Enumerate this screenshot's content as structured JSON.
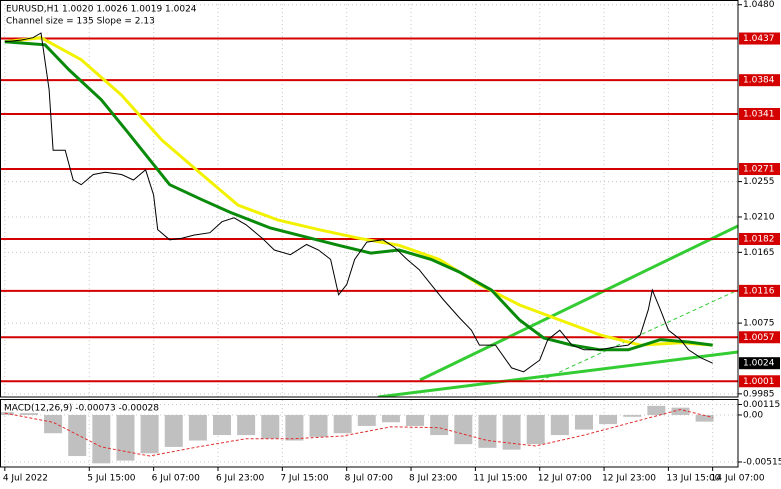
{
  "chart_data": [
    {
      "type": "line",
      "title": "EURUSD,H1  1.0020 1.0026 1.0019 1.0024",
      "subtitle": "Channel size = 135 Slope = 2.13",
      "xlim": [
        -1.2,
        182.3
      ],
      "ylim": [
        0.9981,
        1.0486
      ],
      "yticks": [
        {
          "value": 1.048,
          "label": "1.0480"
        },
        1.0255,
        {
          "value": 1.021,
          "label": "1.0210"
        },
        1.0165,
        1.0075,
        0.9985
      ],
      "grid": true,
      "levels": [
        {
          "value": 1.0437,
          "label": "1.0437"
        },
        {
          "value": 1.0384,
          "label": "1.0384"
        },
        {
          "value": 1.0341,
          "label": "1.0341"
        },
        {
          "value": 1.0271,
          "label": "1.0271"
        },
        {
          "value": 1.0182,
          "label": "1.0182"
        },
        {
          "value": 1.0116,
          "label": "1.0116"
        },
        {
          "value": 1.0057,
          "label": "1.0057"
        },
        {
          "value": 1.0001,
          "label": "1.0001"
        }
      ],
      "level_color": "#d40000",
      "current_price": {
        "value": 1.0024,
        "label": "1.0024"
      },
      "series": [
        {
          "color": "#000000",
          "width": 1,
          "x": [
            0,
            4,
            7,
            9,
            11,
            12,
            15,
            17,
            19,
            22,
            25,
            29,
            32,
            35,
            37,
            38,
            41,
            44,
            47,
            51,
            54,
            57,
            60,
            64,
            67,
            71,
            75,
            78,
            81,
            83,
            85,
            87,
            90,
            94,
            97,
            100,
            103,
            106,
            109,
            113,
            116,
            118,
            122,
            126,
            129,
            133,
            135,
            138,
            141,
            144,
            148,
            152,
            155,
            158,
            160,
            161,
            163,
            165,
            168,
            170,
            173,
            176
          ],
          "values": [
            1.0433,
            1.0435,
            1.0438,
            1.0444,
            1.0372,
            1.0295,
            1.0295,
            1.0257,
            1.0251,
            1.0264,
            1.0267,
            1.0264,
            1.0257,
            1.027,
            1.0238,
            1.0194,
            1.0181,
            1.0183,
            1.0187,
            1.019,
            1.0204,
            1.0209,
            1.02,
            1.0183,
            1.0168,
            1.0162,
            1.0175,
            1.0168,
            1.0156,
            1.0111,
            1.0124,
            1.0156,
            1.0178,
            1.0181,
            1.0171,
            1.0156,
            1.0143,
            1.0124,
            1.0105,
            1.0082,
            1.0066,
            1.0047,
            1.0047,
            1.0018,
            1.0013,
            1.0028,
            1.0054,
            1.0066,
            1.0047,
            1.0041,
            1.0041,
            1.0045,
            1.0047,
            1.006,
            1.0092,
            1.0117,
            1.0092,
            1.0066,
            1.0054,
            1.0041,
            1.0031,
            1.0024
          ]
        },
        {
          "color": "#f2f200",
          "width": 3,
          "x": [
            0,
            9,
            19,
            29,
            39,
            49,
            58,
            68,
            78,
            88,
            98,
            108,
            118,
            128,
            138,
            148,
            158,
            168,
            176
          ],
          "values": [
            1.0433,
            1.0438,
            1.041,
            1.0365,
            1.0308,
            1.0264,
            1.0225,
            1.0206,
            1.0194,
            1.0183,
            1.0174,
            1.0156,
            1.0124,
            1.0098,
            1.0079,
            1.006,
            1.0047,
            1.005,
            1.0047
          ]
        },
        {
          "color": "#0a8a0a",
          "width": 3,
          "x": [
            0,
            10,
            16,
            24,
            31,
            36,
            41,
            49,
            56,
            66,
            76,
            83,
            91,
            98,
            106,
            113,
            121,
            128,
            134,
            141,
            148,
            155,
            163,
            170,
            176
          ],
          "values": [
            1.0433,
            1.0429,
            1.0397,
            1.0359,
            1.0315,
            1.0283,
            1.0251,
            1.0232,
            1.0216,
            1.0196,
            1.0183,
            1.0174,
            1.0164,
            1.0168,
            1.0156,
            1.014,
            1.0117,
            1.0079,
            1.0056,
            1.0047,
            1.0041,
            1.0041,
            1.0054,
            1.0051,
            1.0047
          ]
        }
      ]
    },
    {
      "type": "macd",
      "title": "MACD(12,26,9) -0.00073 -0.00028",
      "ylim": [
        -0.0057,
        0.00164
      ],
      "yticks": [
        0.00115,
        {
          "value": 0,
          "label": "0.00"
        },
        -0.00515
      ],
      "xticks": [
        {
          "value": 0,
          "label": "4 Jul 2022"
        },
        {
          "value": 21,
          "label": "5 Jul 15:00"
        },
        {
          "value": 37,
          "label": "6 Jul 07:00"
        },
        {
          "value": 53,
          "label": "6 Jul 23:00"
        },
        {
          "value": 69,
          "label": "7 Jul 15:00"
        },
        {
          "value": 85,
          "label": "8 Jul 07:00"
        },
        {
          "value": 101,
          "label": "8 Jul 23:00"
        },
        {
          "value": 117,
          "label": "11 Jul 15:00"
        },
        {
          "value": 133,
          "label": "12 Jul 07:00"
        },
        {
          "value": 149,
          "label": "12 Jul 23:00"
        },
        {
          "value": 165,
          "label": "13 Jul 15:00"
        },
        {
          "value": 176,
          "label": "14 Jul 07:00"
        }
      ],
      "series": [
        {
          "type": "bar",
          "color": "#c0c0c0",
          "x": [
            0,
            6,
            12,
            18,
            24,
            30,
            36,
            42,
            48,
            54,
            60,
            66,
            72,
            78,
            84,
            90,
            96,
            102,
            108,
            114,
            120,
            126,
            132,
            138,
            144,
            150,
            156,
            162,
            168,
            174
          ],
          "values": [
            0.0003,
            0.0002,
            -0.002,
            -0.0045,
            -0.0053,
            -0.005,
            -0.0042,
            -0.0035,
            -0.0028,
            -0.0022,
            -0.0022,
            -0.0026,
            -0.0028,
            -0.0024,
            -0.002,
            -0.0012,
            -0.0008,
            -0.0012,
            -0.0022,
            -0.0032,
            -0.0036,
            -0.0038,
            -0.0032,
            -0.0022,
            -0.0016,
            -0.001,
            -0.0002,
            0.001,
            0.0008,
            -0.00073
          ]
        },
        {
          "type": "line",
          "color": "#e03030",
          "x": [
            0,
            12,
            24,
            36,
            48,
            60,
            72,
            84,
            96,
            108,
            120,
            132,
            144,
            156,
            168,
            176
          ],
          "values": [
            0.0002,
            -0.0008,
            -0.0035,
            -0.0045,
            -0.0035,
            -0.0026,
            -0.0026,
            -0.0023,
            -0.0013,
            -0.0014,
            -0.0028,
            -0.0034,
            -0.0022,
            -0.0008,
            0.0006,
            -0.00028
          ]
        }
      ]
    }
  ]
}
